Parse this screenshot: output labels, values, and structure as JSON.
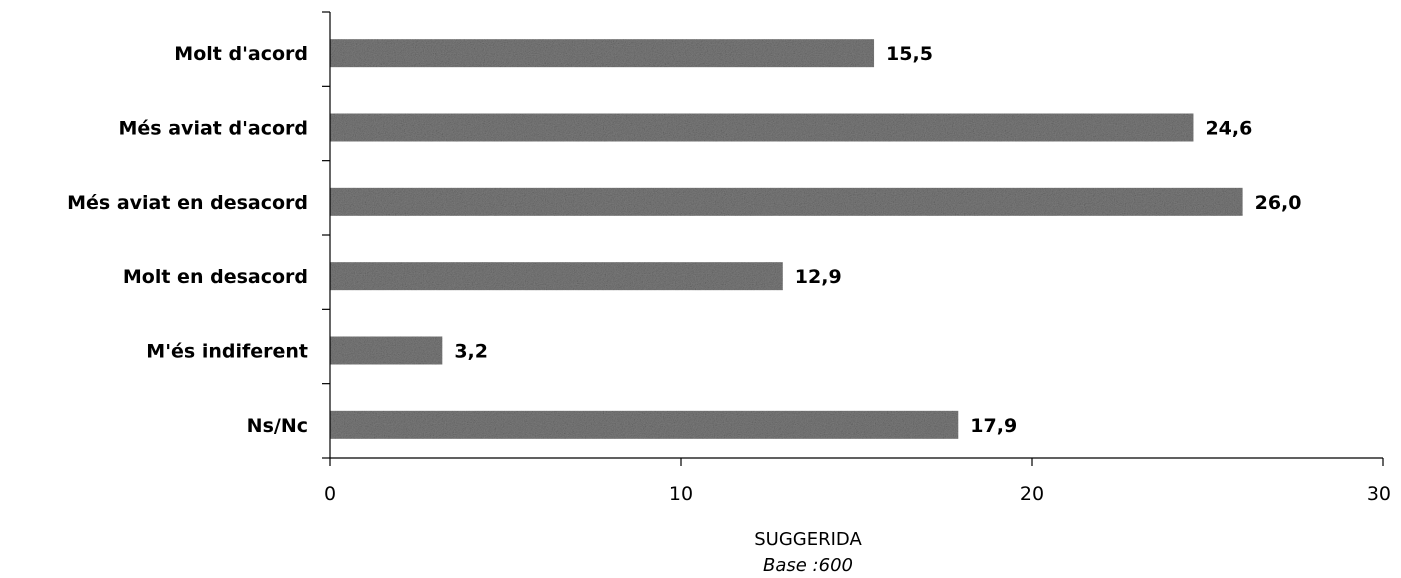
{
  "chart_data": {
    "type": "bar",
    "orientation": "horizontal",
    "categories": [
      "Molt d'acord",
      "Més aviat d'acord",
      "Més aviat en desacord",
      "Molt en desacord",
      "M'és indiferent",
      "Ns/Nc"
    ],
    "values": [
      15.5,
      24.6,
      26.0,
      12.9,
      3.2,
      17.9
    ],
    "value_labels": [
      "15,5",
      "24,6",
      "26,0",
      "12,9",
      "3,2",
      "17,9"
    ],
    "xlabel": "SUGGERIDA",
    "subtitle": "Base :600",
    "xlim": [
      0,
      30
    ],
    "xticks": [
      0,
      10,
      20,
      30
    ],
    "xtick_labels": [
      "0",
      "10",
      "20",
      "30"
    ],
    "grid": false,
    "bar_color": "#7a7a7a"
  }
}
